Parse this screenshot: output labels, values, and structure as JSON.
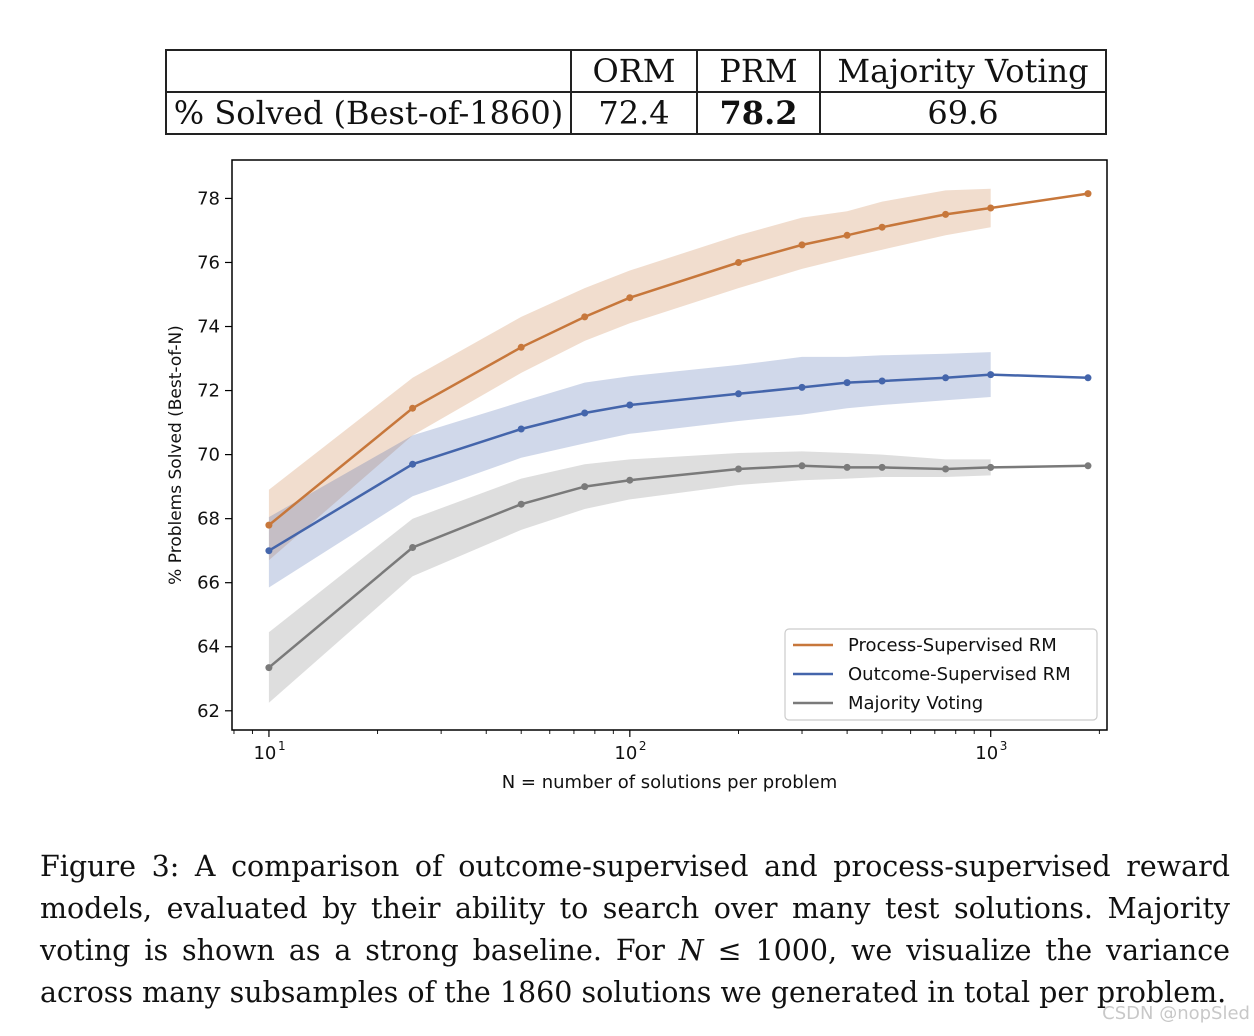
{
  "table": {
    "columns": [
      "",
      "ORM",
      "PRM",
      "Majority Voting"
    ],
    "row_label": "% Solved (Best-of-1860)",
    "values": [
      "72.4",
      "78.2",
      "69.6"
    ],
    "bold_column": "PRM"
  },
  "chart_data": {
    "type": "line",
    "xscale": "log",
    "xlabel": "N = number of solutions per problem",
    "ylabel": "% Problems Solved (Best-of-N)",
    "xlim": [
      7.9,
      2100
    ],
    "ylim": [
      61.4,
      79.2
    ],
    "yticks": [
      62,
      64,
      66,
      68,
      70,
      72,
      74,
      76,
      78
    ],
    "xticks": [
      {
        "value": 10,
        "base": "10",
        "exp": "1"
      },
      {
        "value": 100,
        "base": "10",
        "exp": "2"
      },
      {
        "value": 1000,
        "base": "10",
        "exp": "3"
      }
    ],
    "grid": false,
    "legend_position": "lower right",
    "series": [
      {
        "name": "Process-Supervised RM",
        "color": "#c7773b",
        "x": [
          10,
          25,
          50,
          75,
          100,
          200,
          300,
          400,
          500,
          750,
          1000,
          1860
        ],
        "y": [
          67.8,
          71.45,
          73.35,
          74.3,
          74.9,
          76.0,
          76.55,
          76.85,
          77.1,
          77.5,
          77.7,
          78.15
        ],
        "band_low": [
          66.7,
          70.6,
          72.55,
          73.55,
          74.1,
          75.2,
          75.8,
          76.15,
          76.4,
          76.85,
          77.1
        ],
        "band_high": [
          68.9,
          72.4,
          74.3,
          75.2,
          75.75,
          76.85,
          77.4,
          77.6,
          77.9,
          78.25,
          78.3
        ]
      },
      {
        "name": "Outcome-Supervised RM",
        "color": "#4465ab",
        "x": [
          10,
          25,
          50,
          75,
          100,
          200,
          300,
          400,
          500,
          750,
          1000,
          1860
        ],
        "y": [
          67.0,
          69.7,
          70.8,
          71.3,
          71.55,
          71.9,
          72.1,
          72.25,
          72.3,
          72.4,
          72.5,
          72.4
        ],
        "band_low": [
          65.85,
          68.7,
          69.9,
          70.35,
          70.65,
          71.05,
          71.25,
          71.45,
          71.55,
          71.7,
          71.8
        ],
        "band_high": [
          68.05,
          70.6,
          71.65,
          72.25,
          72.45,
          72.8,
          73.05,
          73.05,
          73.1,
          73.15,
          73.2
        ]
      },
      {
        "name": "Majority Voting",
        "color": "#7a7a7a",
        "x": [
          10,
          25,
          50,
          75,
          100,
          200,
          300,
          400,
          500,
          750,
          1000,
          1860
        ],
        "y": [
          63.35,
          67.1,
          68.45,
          69.0,
          69.2,
          69.55,
          69.65,
          69.6,
          69.6,
          69.55,
          69.6,
          69.65
        ],
        "band_low": [
          62.25,
          66.2,
          67.65,
          68.3,
          68.6,
          69.05,
          69.2,
          69.25,
          69.3,
          69.3,
          69.35
        ],
        "band_high": [
          64.45,
          68.0,
          69.25,
          69.7,
          69.85,
          70.05,
          70.1,
          70.05,
          70.0,
          69.85,
          69.85
        ]
      }
    ]
  },
  "caption": {
    "label": "Figure 3:",
    "text_before_math": "A comparison of outcome-supervised and process-supervised reward models, evaluated by their ability to search over many test solutions. Majority voting is shown as a strong baseline. For",
    "math_var": "N",
    "math_rest": "≤ 1000,",
    "text_after_math": "we visualize the variance across many subsamples of the 1860 solutions we generated in total per problem."
  },
  "watermark": "CSDN @nopSled"
}
